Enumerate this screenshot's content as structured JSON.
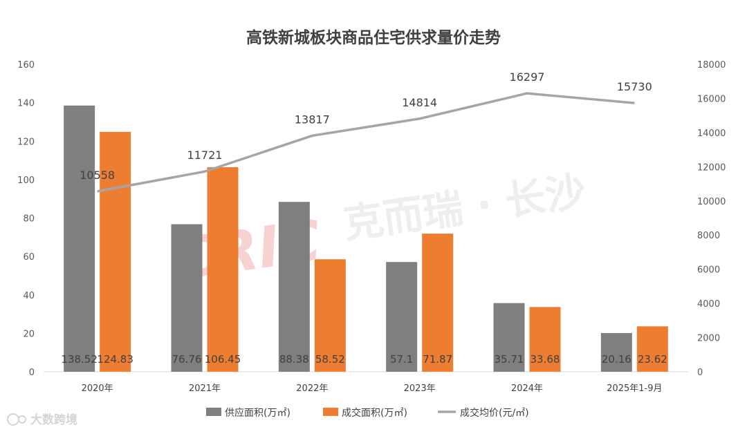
{
  "chart_data": {
    "type": "bar",
    "title": "高铁新城板块商品住宅供求量价走势",
    "categories": [
      "2020年",
      "2021年",
      "2022年",
      "2023年",
      "2024年",
      "2025年1-9月"
    ],
    "series": [
      {
        "name": "供应面积(万㎡)",
        "kind": "bar",
        "axis": "left",
        "color": "#7f7f7f",
        "values": [
          138.52,
          76.76,
          88.38,
          57.1,
          35.71,
          20.16
        ],
        "labels": [
          "138.52",
          "76.76",
          "88.38",
          "57.1",
          "35.71",
          "20.16"
        ]
      },
      {
        "name": "成交面积(万㎡)",
        "kind": "bar",
        "axis": "left",
        "color": "#ed7d31",
        "values": [
          124.83,
          106.45,
          58.52,
          71.87,
          33.68,
          23.62
        ],
        "labels": [
          "124.83",
          "106.45",
          "58.52",
          "71.87",
          "33.68",
          "23.62"
        ]
      },
      {
        "name": "成交均价(元/㎡)",
        "kind": "line",
        "axis": "right",
        "color": "#a5a5a5",
        "values": [
          10558,
          11721,
          13817,
          14814,
          16297,
          15730
        ],
        "labels": [
          "10558",
          "11721",
          "13817",
          "14814",
          "16297",
          "15730"
        ]
      }
    ],
    "y_left": {
      "min": 0,
      "max": 160,
      "ticks": [
        "0",
        "20",
        "40",
        "60",
        "80",
        "100",
        "120",
        "140",
        "160"
      ]
    },
    "y_right": {
      "min": 0,
      "max": 18000,
      "ticks": [
        "0",
        "2000",
        "4000",
        "6000",
        "8000",
        "10000",
        "12000",
        "14000",
        "16000",
        "18000"
      ]
    },
    "grid": false,
    "legend_position": "bottom"
  },
  "watermark": {
    "logo": "CRIC",
    "text": "克而瑞 · 长沙"
  },
  "brand": {
    "text": "大数跨境"
  },
  "colors": {
    "supply": "#7f7f7f",
    "deal": "#ed7d31",
    "price": "#a5a5a5"
  }
}
